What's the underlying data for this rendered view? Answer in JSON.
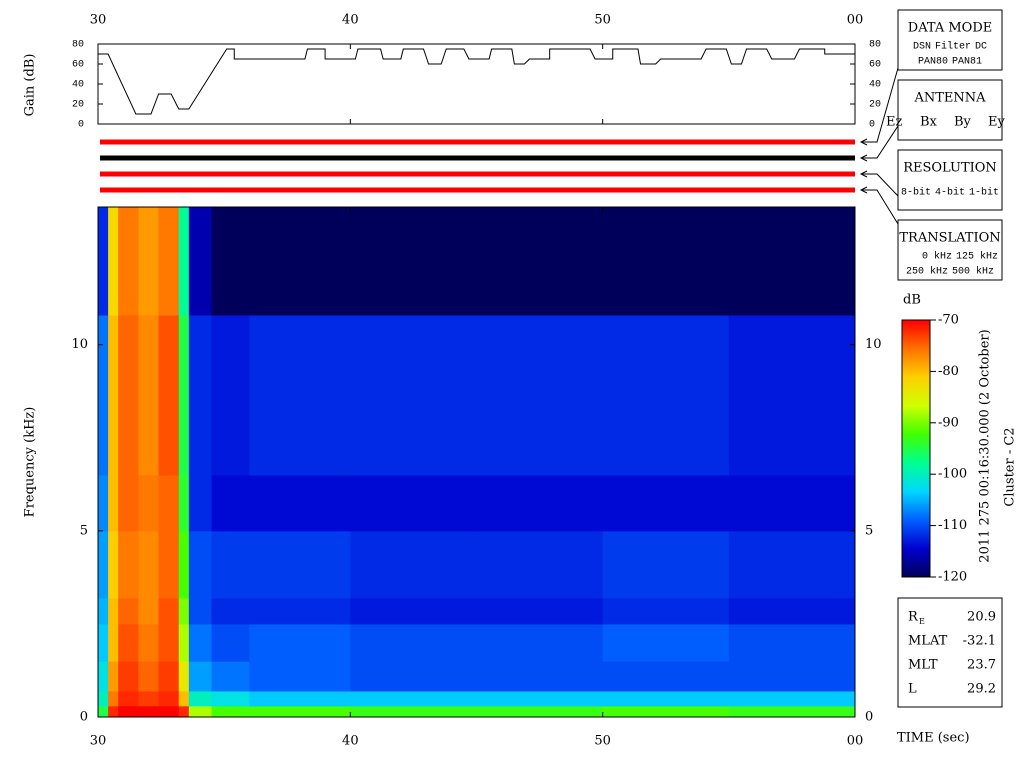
{
  "chart_data": [
    {
      "type": "line",
      "ylabel": "Gain (dB)",
      "color": "#000000",
      "xlim": [
        30,
        60
      ],
      "xticks": [
        30,
        40,
        50,
        {
          "value": 60,
          "label": "00"
        }
      ],
      "ylim": [
        0,
        80
      ],
      "yticks": [
        0,
        20,
        40,
        60,
        80
      ],
      "x": [
        30,
        30.4,
        31.5,
        32.1,
        32.4,
        32.9,
        33.2,
        33.6,
        35.1,
        35.4,
        35.4,
        38.2,
        38.3,
        39,
        39,
        40.2,
        40.3,
        41.2,
        41.3,
        42,
        42.1,
        42.9,
        43.1,
        43.6,
        43.8,
        44.5,
        44.7,
        45.5,
        45.6,
        46.4,
        46.5,
        46.9,
        47.1,
        47.9,
        47.9,
        49.5,
        49.7,
        50.4,
        50.4,
        51.4,
        51.5,
        52.1,
        52.3,
        53.9,
        54.1,
        54.9,
        55.1,
        55.5,
        55.7,
        56.5,
        56.7,
        57.6,
        57.8,
        58.8,
        58.8,
        60
      ],
      "values": [
        70,
        70,
        10,
        10,
        30,
        30,
        15,
        15,
        75,
        75,
        65,
        65,
        75,
        75,
        65,
        65,
        75,
        75,
        65,
        65,
        75,
        75,
        60,
        60,
        75,
        75,
        65,
        65,
        75,
        75,
        60,
        60,
        65,
        65,
        75,
        75,
        65,
        65,
        75,
        75,
        60,
        60,
        65,
        65,
        75,
        75,
        60,
        60,
        75,
        75,
        65,
        65,
        75,
        75,
        70,
        70
      ]
    },
    {
      "type": "heatmap",
      "ylabel": "Frequency (kHz)",
      "xlabel": "TIME (sec)",
      "xlim": [
        30,
        60
      ],
      "xticks": [
        30,
        40,
        50,
        {
          "value": 60,
          "label": "00"
        }
      ],
      "ylim": [
        0,
        13.7
      ],
      "yticks": [
        0,
        5,
        10
      ],
      "x_edges": [
        30,
        30.4,
        30.8,
        31.6,
        32.4,
        33.2,
        33.6,
        34.5,
        36,
        40,
        45,
        50,
        55,
        60
      ],
      "y_edges": [
        0,
        0.3,
        0.7,
        1.5,
        2.5,
        3.2,
        5,
        6.5,
        10.8,
        13.7
      ],
      "values": [
        [
          -95,
          -72,
          -70,
          -70,
          -70,
          -72,
          -88,
          -92,
          -92,
          -93,
          -93,
          -92,
          -93
        ],
        [
          -100,
          -76,
          -72,
          -73,
          -72,
          -80,
          -100,
          -102,
          -104,
          -104,
          -104,
          -104,
          -104
        ],
        [
          -102,
          -78,
          -73,
          -75,
          -73,
          -84,
          -106,
          -108,
          -109,
          -110,
          -110,
          -110,
          -110
        ],
        [
          -104,
          -80,
          -74,
          -76,
          -74,
          -88,
          -108,
          -110,
          -109,
          -110,
          -110,
          -109,
          -110
        ],
        [
          -105,
          -80,
          -75,
          -77,
          -74,
          -90,
          -110,
          -112,
          -112,
          -113,
          -113,
          -112,
          -113
        ],
        [
          -106,
          -81,
          -76,
          -77,
          -75,
          -92,
          -110,
          -111,
          -111,
          -112,
          -112,
          -111,
          -112
        ],
        [
          -107,
          -80,
          -75,
          -76,
          -75,
          -94,
          -112,
          -114,
          -114,
          -114,
          -114,
          -114,
          -114
        ],
        [
          -108,
          -80,
          -75,
          -77,
          -74,
          -95,
          -112,
          -113,
          -112,
          -112,
          -112,
          -112,
          -113
        ],
        [
          -112,
          -82,
          -76,
          -78,
          -76,
          -98,
          -116,
          -120,
          -120,
          -120,
          -120,
          -120,
          -120
        ]
      ],
      "colormap": [
        "#00005a",
        "#0000d0",
        "#0060ff",
        "#00d8ff",
        "#00ff90",
        "#40ff00",
        "#d0ff00",
        "#ffd000",
        "#ff7000",
        "#ff0000"
      ],
      "colorbar": {
        "label": "dB",
        "lim": [
          -120,
          -70
        ],
        "ticks": [
          -70,
          -80,
          -90,
          -100,
          -110,
          -120
        ]
      }
    }
  ],
  "status_bars": [
    "#ff0000",
    "#000000",
    "#ff0000",
    "#ff0000"
  ],
  "side_panels": [
    {
      "title": "DATA MODE",
      "lines": [
        [
          {
            "text": "DSN",
            "color": "#ff0000"
          },
          {
            "text": "Filter",
            "color": "#00c000"
          },
          {
            "text": "DC",
            "color": "#0000ff"
          }
        ],
        [
          {
            "text": "PAN80",
            "color": "#000000"
          },
          {
            "text": "PAN81",
            "color": "#00c8d8"
          }
        ]
      ]
    },
    {
      "title": "ANTENNA",
      "lines": [
        [
          {
            "text": "Ez",
            "color": "#ff0000"
          },
          {
            "text": "Bx",
            "color": "#00c000"
          },
          {
            "text": "By",
            "color": "#0000ff"
          },
          {
            "text": "Ey",
            "color": "#000000"
          }
        ]
      ]
    },
    {
      "title": "RESOLUTION",
      "lines": [
        [
          {
            "text": "8-bit",
            "color": "#ff0000"
          },
          {
            "text": "4-bit",
            "color": "#00c000"
          },
          {
            "text": "1-bit",
            "color": "#0000ff"
          }
        ]
      ]
    },
    {
      "title": "TRANSLATION",
      "lines": [
        [
          {
            "text": "0 kHz",
            "color": "#ff0000"
          },
          {
            "text": "125 kHz",
            "color": "#00c000"
          }
        ],
        [
          {
            "text": "250 kHz",
            "color": "#0000ff"
          },
          {
            "text": "500 kHz",
            "color": "#000000"
          }
        ]
      ]
    }
  ],
  "ephemeris": [
    {
      "label": "R",
      "sub": "E",
      "value": 20.9
    },
    {
      "label": "MLAT",
      "value": -32.1
    },
    {
      "label": "MLT",
      "value": 23.7
    },
    {
      "label": "L",
      "value": 29.2
    }
  ],
  "caption": "2011 275 00:16:30.000 (2 October)",
  "spacecraft": "Cluster - C2"
}
